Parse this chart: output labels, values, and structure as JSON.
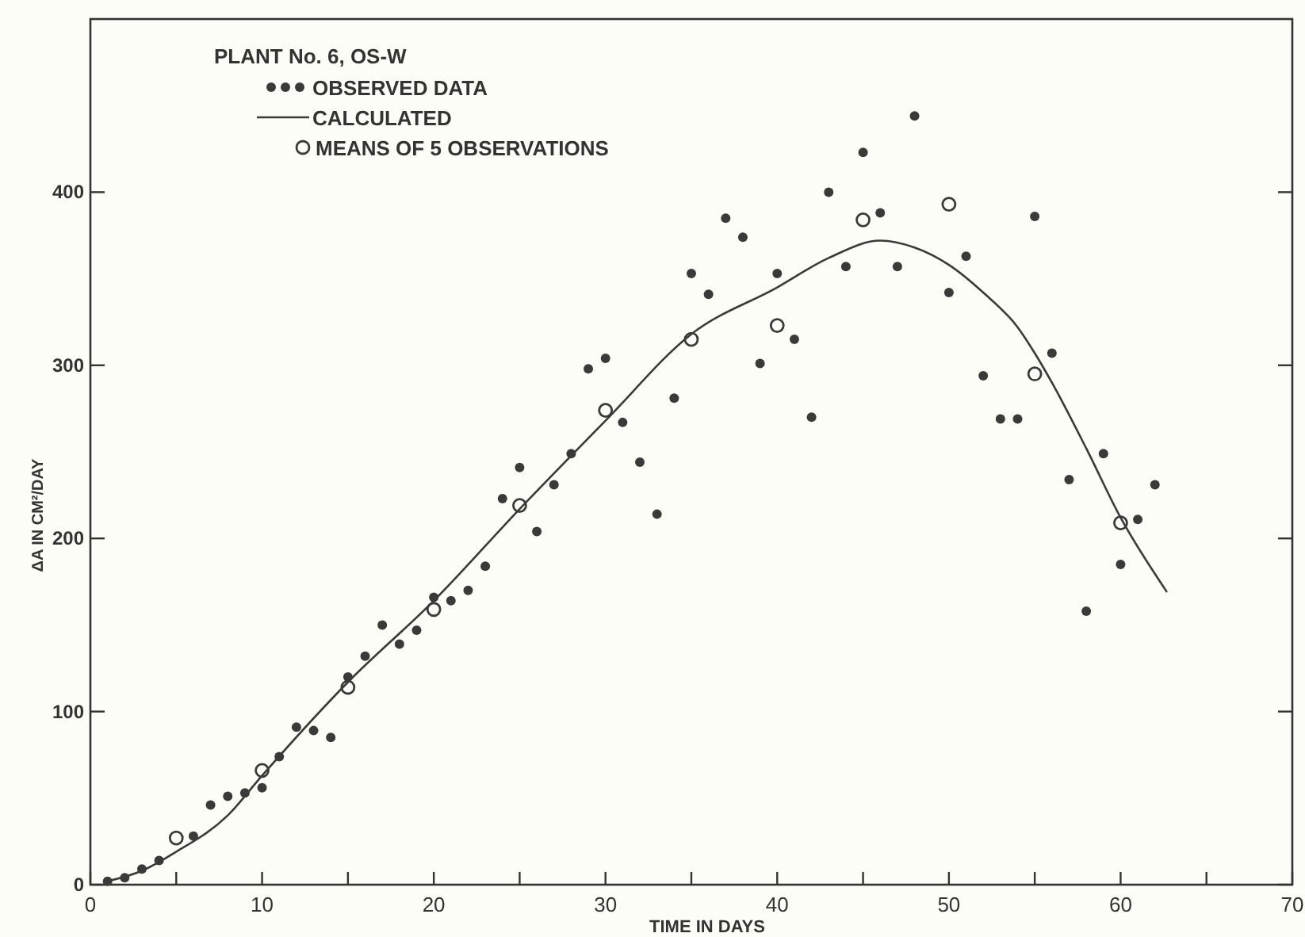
{
  "chart_data": {
    "type": "scatter",
    "xlabel": "TIME IN DAYS",
    "ylabel": "ΔA IN CM²/DAY",
    "legend_title": "PLANT No. 6, OS-W",
    "legend": "top left",
    "grid": false,
    "xlim": [
      0,
      70
    ],
    "ylim": [
      0,
      500
    ],
    "xticks": [
      0,
      {
        "value": 5,
        "label": null
      },
      10,
      {
        "value": 15,
        "label": null
      },
      20,
      {
        "value": 25,
        "label": null
      },
      30,
      {
        "value": 35,
        "label": null
      },
      40,
      {
        "value": 45,
        "label": null
      },
      50,
      {
        "value": 55,
        "label": null
      },
      60,
      {
        "value": 65,
        "label": null
      },
      70
    ],
    "yticks": [
      0,
      100,
      200,
      300,
      400
    ],
    "series": [
      {
        "name": "OBSERVED DATA",
        "marker": "circle",
        "color": "#3a3a3a",
        "x": [
          1,
          2,
          3,
          4,
          6,
          7,
          8,
          9,
          10,
          11,
          12,
          13,
          14,
          15,
          16,
          17,
          18,
          19,
          20,
          21,
          22,
          23,
          24,
          25,
          26,
          27,
          28,
          29,
          30,
          31,
          32,
          33,
          34,
          35,
          36,
          37,
          38,
          39,
          40,
          41,
          42,
          43,
          44,
          45,
          46,
          47,
          48,
          50,
          51,
          52,
          53,
          54,
          55,
          56,
          57,
          58,
          59,
          60,
          61,
          62
        ],
        "values": [
          2,
          4,
          9,
          14,
          28,
          46,
          51,
          53,
          56,
          74,
          91,
          89,
          85,
          120,
          132,
          150,
          139,
          147,
          166,
          164,
          170,
          184,
          223,
          241,
          204,
          231,
          249,
          298,
          304,
          267,
          244,
          214,
          281,
          353,
          341,
          385,
          374,
          301,
          353,
          315,
          270,
          400,
          357,
          423,
          388,
          357,
          444,
          342,
          363,
          294,
          269,
          269,
          386,
          307,
          234,
          158,
          249,
          185,
          211,
          231
        ]
      },
      {
        "name": "CALCULATED",
        "type": "line",
        "marker": "none",
        "line_style": "solid",
        "color": "#3a3a3a",
        "x": [
          1,
          3,
          5,
          8,
          10,
          15,
          20,
          25,
          30,
          35,
          40,
          43,
          46,
          48,
          50,
          52,
          54,
          55,
          56,
          58,
          60,
          62.7
        ],
        "values": [
          2,
          8,
          19,
          40,
          63,
          117,
          164,
          217,
          268,
          318,
          345,
          362,
          372,
          368,
          358,
          342,
          322,
          307,
          290,
          252,
          212,
          169
        ]
      },
      {
        "name": "MEANS OF 5 OBSERVATIONS",
        "marker": "open circle",
        "color": "#3a3a3a",
        "x": [
          5,
          10,
          15,
          20,
          25,
          30,
          35,
          40,
          45,
          50,
          55,
          60
        ],
        "values": [
          27,
          66,
          114,
          159,
          219,
          274,
          315,
          323,
          384,
          393,
          295,
          209
        ]
      }
    ]
  }
}
